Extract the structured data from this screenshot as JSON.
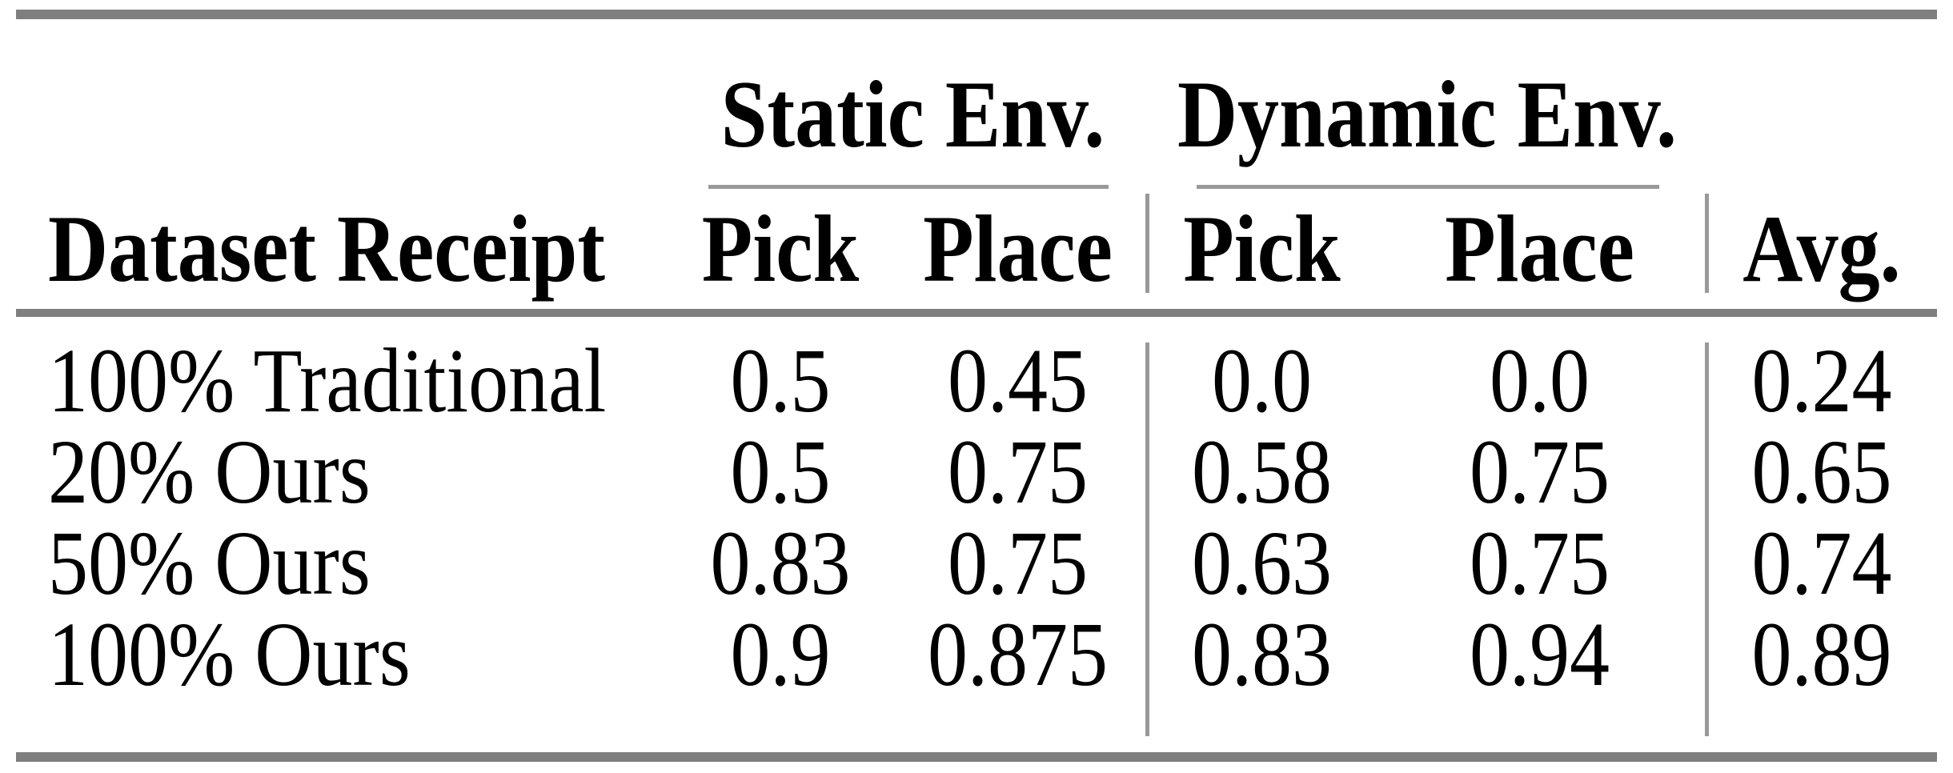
{
  "table": {
    "group_headers": [
      "Static Env.",
      "Dynamic Env."
    ],
    "columns": [
      "Dataset Receipt",
      "Pick",
      "Place",
      "Pick",
      "Place",
      "Avg."
    ],
    "rows": [
      {
        "label": "100% Traditional",
        "values": [
          "0.5",
          "0.45",
          "0.0",
          "0.0",
          "0.24"
        ]
      },
      {
        "label": "20% Ours",
        "values": [
          "0.5",
          "0.75",
          "0.58",
          "0.75",
          "0.65"
        ]
      },
      {
        "label": "50% Ours",
        "values": [
          "0.83",
          "0.75",
          "0.63",
          "0.75",
          "0.74"
        ]
      },
      {
        "label": "100% Ours",
        "values": [
          "0.9",
          "0.875",
          "0.83",
          "0.94",
          "0.89"
        ]
      }
    ],
    "colors": {
      "rule": "#7f7f7f",
      "light_rule": "#999999",
      "text": "#000000",
      "background": "#ffffff"
    }
  },
  "chart_data": {
    "type": "table",
    "title": "",
    "columns": [
      "Dataset Receipt",
      "Static Env. Pick",
      "Static Env. Place",
      "Dynamic Env. Pick",
      "Dynamic Env. Place",
      "Avg."
    ],
    "rows": [
      [
        "100% Traditional",
        0.5,
        0.45,
        0.0,
        0.0,
        0.24
      ],
      [
        "20% Ours",
        0.5,
        0.75,
        0.58,
        0.75,
        0.65
      ],
      [
        "50% Ours",
        0.83,
        0.75,
        0.63,
        0.75,
        0.74
      ],
      [
        "100% Ours",
        0.9,
        0.875,
        0.83,
        0.94,
        0.89
      ]
    ]
  }
}
